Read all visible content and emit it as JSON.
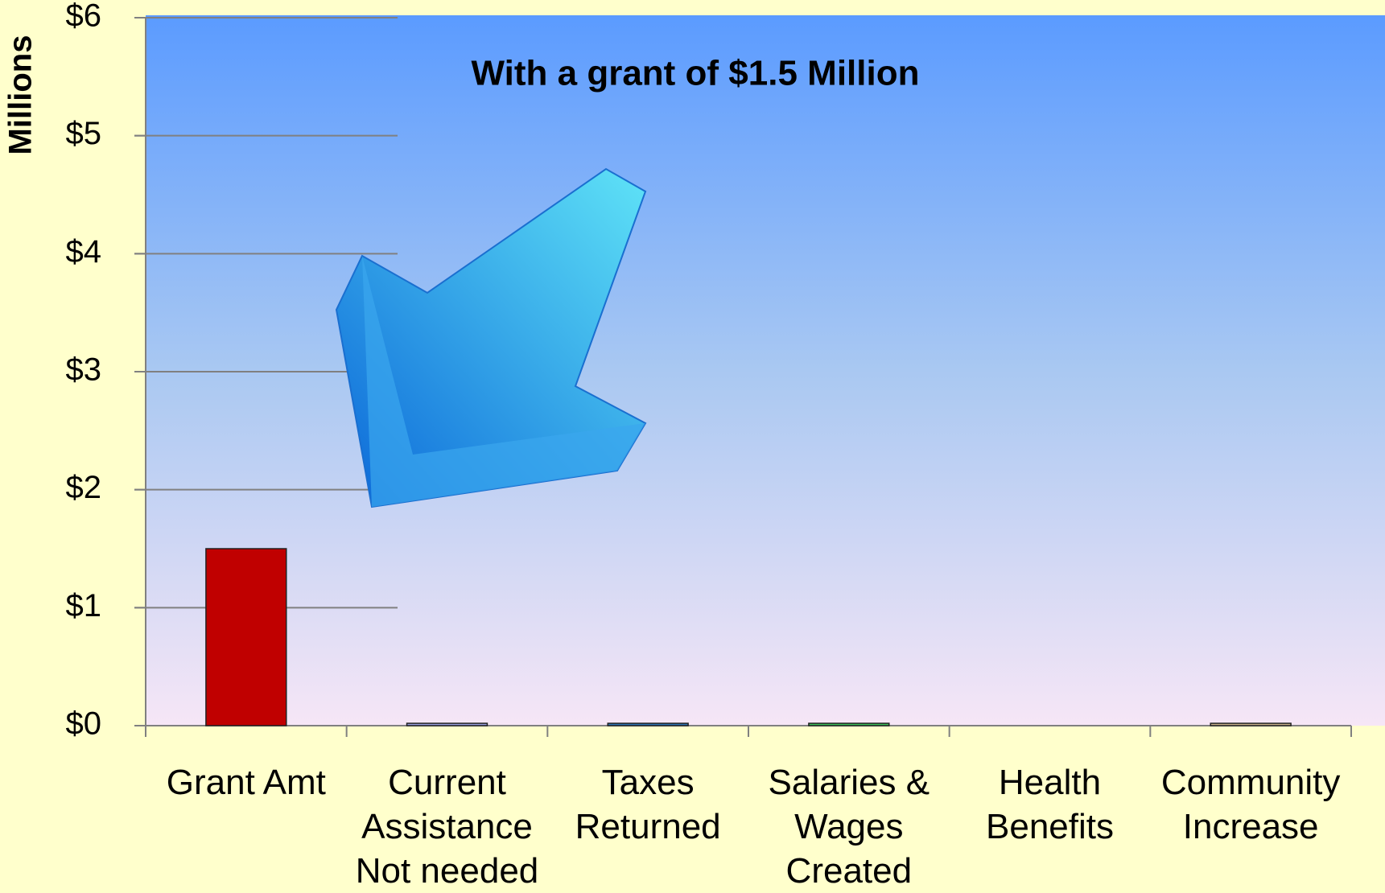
{
  "chart_data": {
    "type": "bar",
    "title": "With a grant of $1.5 Million",
    "y_label": "Millions",
    "categories": [
      "Grant Amt",
      "Current Assistance Not needed",
      "Taxes Returned",
      "Salaries & Wages Created",
      "Health Benefits",
      "Community Increase"
    ],
    "values": [
      1.5,
      0.02,
      0.02,
      0.02,
      0,
      0.02
    ],
    "colors": [
      "#c00000",
      "#9aa0e0",
      "#2e75b6",
      "#3cbf5a",
      "#9aa0e0",
      "#c8b08a"
    ],
    "ylim": [
      0,
      6
    ],
    "yticks": [
      {
        "value": 0,
        "label": "$0"
      },
      {
        "value": 1,
        "label": "$1"
      },
      {
        "value": 2,
        "label": "$2"
      },
      {
        "value": 3,
        "label": "$3"
      },
      {
        "value": 4,
        "label": "$4"
      },
      {
        "value": 5,
        "label": "$5"
      },
      {
        "value": 6,
        "label": "$6"
      }
    ],
    "grid": true
  }
}
